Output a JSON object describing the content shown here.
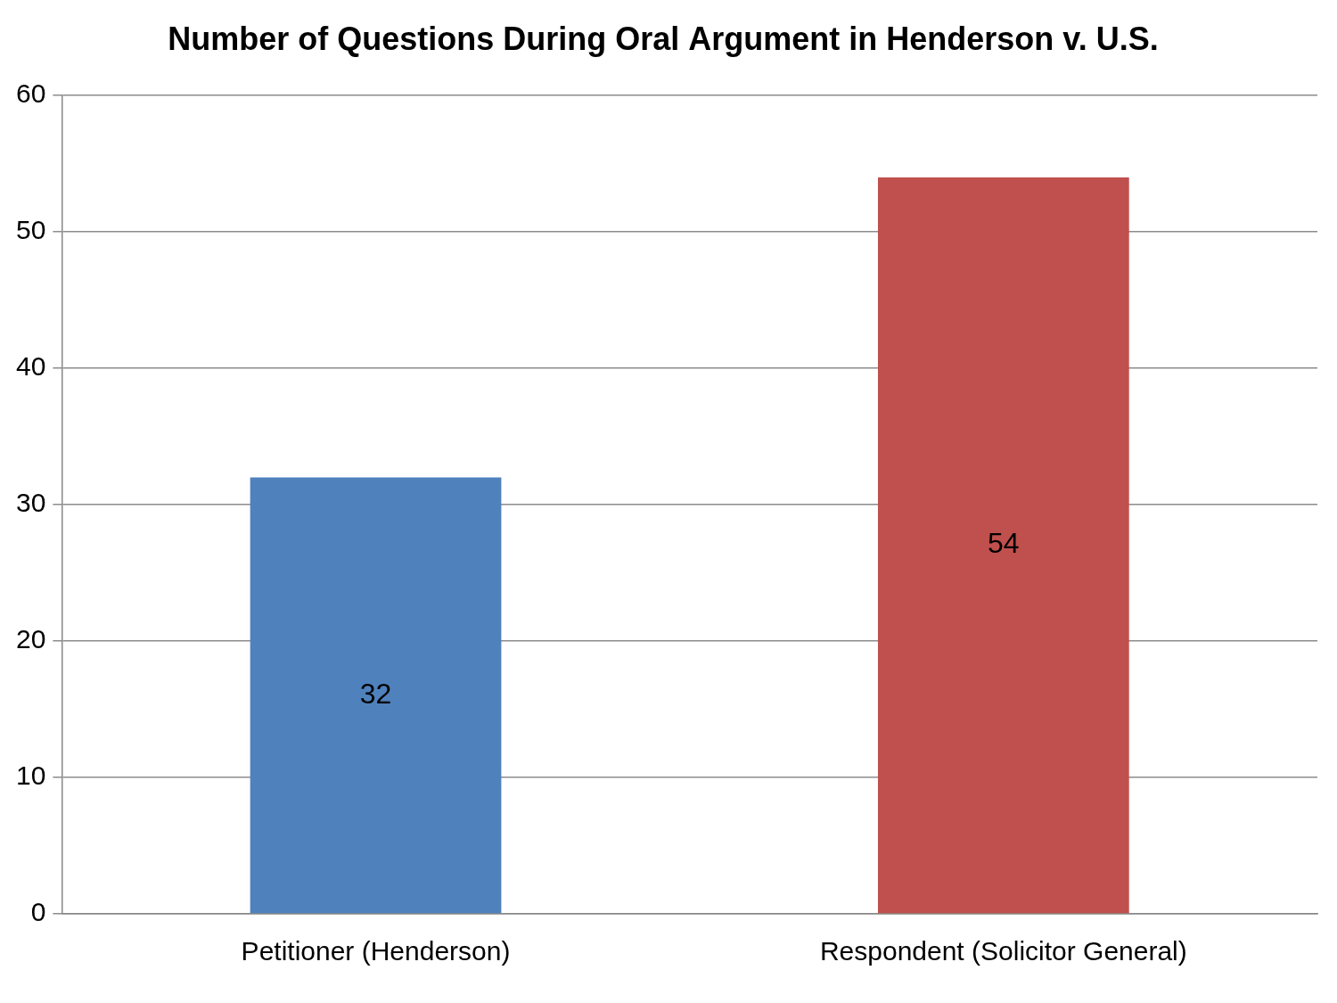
{
  "chart_data": {
    "type": "bar",
    "title": "Number of Questions During Oral Argument in Henderson v. U.S.",
    "categories": [
      "Petitioner (Henderson)",
      "Respondent (Solicitor General)"
    ],
    "values": [
      32,
      54
    ],
    "colors": [
      "#4f81bd",
      "#c0504d"
    ],
    "ylim": [
      0,
      60
    ],
    "yticks": [
      0,
      10,
      20,
      30,
      40,
      50,
      60
    ],
    "grid": true,
    "data_labels": true
  }
}
